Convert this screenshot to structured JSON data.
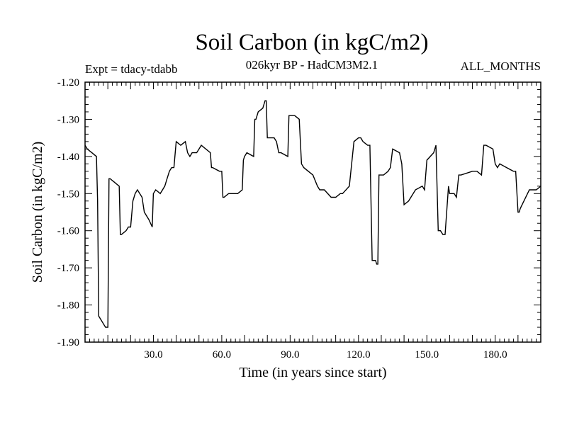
{
  "chart_data": {
    "type": "line",
    "title": "Soil Carbon (in kgC/m2)",
    "subtitle": "026kyr BP - HadCM3M2.1",
    "left_annotation": "Expt = tdacy-tdabb",
    "right_annotation": "ALL_MONTHS",
    "xlabel": "Time (in years since start)",
    "ylabel": "Soil Carbon (in kgC/m2)",
    "xlim": [
      0,
      200
    ],
    "ylim": [
      -1.9,
      -1.2
    ],
    "xticks": [
      30,
      60,
      90,
      120,
      150,
      180
    ],
    "xtick_labels": [
      "30.0",
      "60.0",
      "90.0",
      "120.0",
      "150.0",
      "180.0"
    ],
    "yticks": [
      -1.2,
      -1.3,
      -1.4,
      -1.5,
      -1.6,
      -1.7,
      -1.8,
      -1.9
    ],
    "ytick_labels": [
      "-1.20",
      "-1.30",
      "-1.40",
      "-1.50",
      "-1.60",
      "-1.70",
      "-1.80",
      "-1.90"
    ],
    "series": [
      {
        "name": "Soil Carbon",
        "x": [
          0,
          1,
          3,
          5,
          5.5,
          6,
          7,
          8,
          9,
          10,
          10.5,
          11,
          13,
          15,
          15.5,
          16,
          18,
          19,
          20,
          21,
          22,
          23,
          25,
          26,
          28,
          29.5,
          30,
          31,
          33,
          35,
          36,
          37,
          38,
          39,
          40,
          42,
          44,
          45,
          46,
          47,
          48,
          49,
          50,
          51,
          55,
          55.5,
          56,
          59,
          60,
          60.5,
          61,
          63,
          67,
          69,
          69.5,
          70,
          71,
          74,
          74.5,
          75,
          76,
          78,
          79,
          79.5,
          80,
          81,
          83,
          84,
          85,
          86,
          89,
          89.5,
          90,
          92,
          94,
          95,
          96,
          100,
          102,
          103,
          105,
          108,
          110,
          112,
          113,
          116,
          118,
          120,
          121,
          122,
          124,
          125,
          126,
          127,
          127.5,
          128,
          128.5,
          129,
          131,
          133,
          134,
          135,
          138,
          139,
          140,
          142,
          144,
          145,
          148,
          149,
          150,
          153,
          154,
          155,
          155.5,
          156,
          157,
          158,
          159.5,
          160,
          162,
          163,
          164,
          165,
          170,
          172,
          174,
          175,
          176,
          179,
          180,
          181,
          182,
          185,
          188,
          189,
          190,
          190.5,
          191,
          195,
          196,
          198,
          200
        ],
        "values": [
          -1.37,
          -1.38,
          -1.39,
          -1.4,
          -1.52,
          -1.83,
          -1.84,
          -1.85,
          -1.86,
          -1.86,
          -1.46,
          -1.46,
          -1.47,
          -1.48,
          -1.61,
          -1.61,
          -1.6,
          -1.59,
          -1.59,
          -1.52,
          -1.5,
          -1.49,
          -1.51,
          -1.55,
          -1.57,
          -1.59,
          -1.5,
          -1.49,
          -1.5,
          -1.48,
          -1.46,
          -1.44,
          -1.43,
          -1.43,
          -1.36,
          -1.37,
          -1.36,
          -1.39,
          -1.4,
          -1.39,
          -1.39,
          -1.39,
          -1.38,
          -1.37,
          -1.39,
          -1.43,
          -1.43,
          -1.44,
          -1.44,
          -1.51,
          -1.51,
          -1.5,
          -1.5,
          -1.49,
          -1.41,
          -1.4,
          -1.39,
          -1.4,
          -1.3,
          -1.3,
          -1.28,
          -1.27,
          -1.25,
          -1.25,
          -1.35,
          -1.35,
          -1.35,
          -1.36,
          -1.39,
          -1.39,
          -1.4,
          -1.29,
          -1.29,
          -1.29,
          -1.3,
          -1.42,
          -1.43,
          -1.45,
          -1.48,
          -1.49,
          -1.49,
          -1.51,
          -1.51,
          -1.5,
          -1.5,
          -1.48,
          -1.36,
          -1.35,
          -1.35,
          -1.36,
          -1.37,
          -1.37,
          -1.68,
          -1.68,
          -1.68,
          -1.69,
          -1.69,
          -1.45,
          -1.45,
          -1.44,
          -1.43,
          -1.38,
          -1.39,
          -1.42,
          -1.53,
          -1.52,
          -1.5,
          -1.49,
          -1.48,
          -1.49,
          -1.41,
          -1.39,
          -1.37,
          -1.6,
          -1.6,
          -1.6,
          -1.61,
          -1.61,
          -1.48,
          -1.5,
          -1.5,
          -1.51,
          -1.45,
          -1.45,
          -1.44,
          -1.44,
          -1.45,
          -1.37,
          -1.37,
          -1.38,
          -1.42,
          -1.43,
          -1.42,
          -1.43,
          -1.44,
          -1.44,
          -1.55,
          -1.55,
          -1.54,
          -1.49,
          -1.49,
          -1.49,
          -1.48
        ]
      }
    ]
  }
}
